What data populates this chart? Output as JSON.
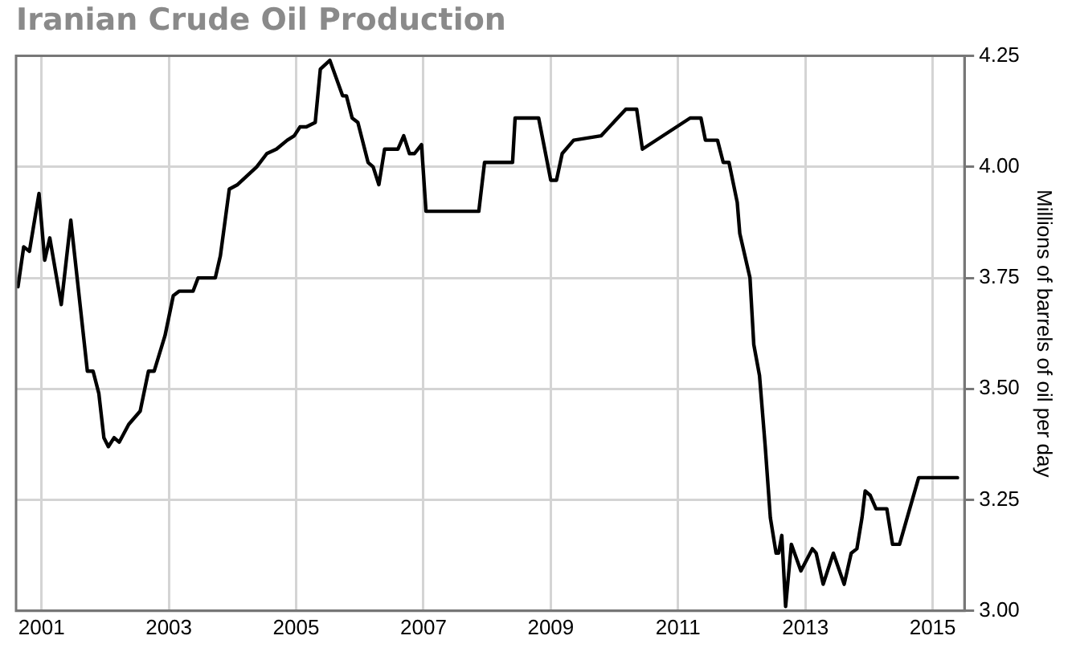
{
  "chart_data": {
    "type": "line",
    "title": "Iranian Crude Oil Production",
    "ylabel": "Millions of barrels of oil per day",
    "xlim": [
      2000.6,
      2015.5
    ],
    "xticks": [
      2001,
      2003,
      2005,
      2007,
      2009,
      2011,
      2013,
      2015
    ],
    "ylim": [
      3.0,
      4.25
    ],
    "yticks": [
      {
        "value": 3.0,
        "label": "3.00"
      },
      {
        "value": 3.25,
        "label": "3.25"
      },
      {
        "value": 3.5,
        "label": "3.50"
      },
      {
        "value": 3.75,
        "label": "3.75"
      },
      {
        "value": 4.0,
        "label": "4.00"
      },
      {
        "value": 4.25,
        "label": "4.25"
      }
    ],
    "grid": true,
    "legend": false,
    "marker": "none",
    "line_style": "solid",
    "series": [
      {
        "color": "#000000",
        "x": [
          2000.63,
          2000.72,
          2000.81,
          2000.96,
          2001.05,
          2001.13,
          2001.31,
          2001.46,
          2001.72,
          2001.81,
          2001.9,
          2001.98,
          2002.05,
          2002.14,
          2002.22,
          2002.37,
          2002.55,
          2002.68,
          2002.77,
          2002.94,
          2003.07,
          2003.16,
          2003.38,
          2003.46,
          2003.73,
          2003.81,
          2003.95,
          2004.08,
          2004.38,
          2004.54,
          2004.69,
          2004.86,
          2004.97,
          2005.06,
          2005.16,
          2005.3,
          2005.38,
          2005.53,
          2005.73,
          2005.79,
          2005.88,
          2005.97,
          2006.13,
          2006.21,
          2006.3,
          2006.39,
          2006.6,
          2006.69,
          2006.78,
          2006.86,
          2006.97,
          2007.04,
          2007.87,
          2007.96,
          2008.4,
          2008.44,
          2008.81,
          2009.0,
          2009.09,
          2009.18,
          2009.36,
          2009.79,
          2010.18,
          2010.35,
          2010.44,
          2011.19,
          2011.36,
          2011.43,
          2011.62,
          2011.71,
          2011.8,
          2011.93,
          2011.97,
          2012.13,
          2012.19,
          2012.28,
          2012.37,
          2012.45,
          2012.54,
          2012.58,
          2012.63,
          2012.69,
          2012.78,
          2012.93,
          2013.11,
          2013.17,
          2013.28,
          2013.44,
          2013.61,
          2013.72,
          2013.81,
          2013.89,
          2013.94,
          2014.02,
          2014.11,
          2014.28,
          2014.37,
          2014.48,
          2014.78,
          2015.39
        ],
        "values": [
          3.73,
          3.82,
          3.81,
          3.94,
          3.79,
          3.84,
          3.69,
          3.88,
          3.54,
          3.54,
          3.49,
          3.39,
          3.37,
          3.39,
          3.38,
          3.42,
          3.45,
          3.54,
          3.54,
          3.62,
          3.71,
          3.72,
          3.72,
          3.75,
          3.75,
          3.8,
          3.95,
          3.96,
          4.0,
          4.03,
          4.04,
          4.06,
          4.07,
          4.09,
          4.09,
          4.1,
          4.22,
          4.24,
          4.16,
          4.16,
          4.11,
          4.1,
          4.01,
          4.0,
          3.96,
          4.04,
          4.04,
          4.07,
          4.03,
          4.03,
          4.05,
          3.9,
          3.9,
          4.01,
          4.01,
          4.11,
          4.11,
          3.97,
          3.97,
          4.03,
          4.06,
          4.07,
          4.13,
          4.13,
          4.04,
          4.11,
          4.11,
          4.06,
          4.06,
          4.01,
          4.01,
          3.92,
          3.85,
          3.75,
          3.6,
          3.53,
          3.37,
          3.21,
          3.13,
          3.13,
          3.17,
          3.01,
          3.15,
          3.09,
          3.14,
          3.13,
          3.06,
          3.13,
          3.06,
          3.13,
          3.14,
          3.21,
          3.27,
          3.26,
          3.23,
          3.23,
          3.15,
          3.15,
          3.3,
          3.3
        ]
      }
    ]
  }
}
